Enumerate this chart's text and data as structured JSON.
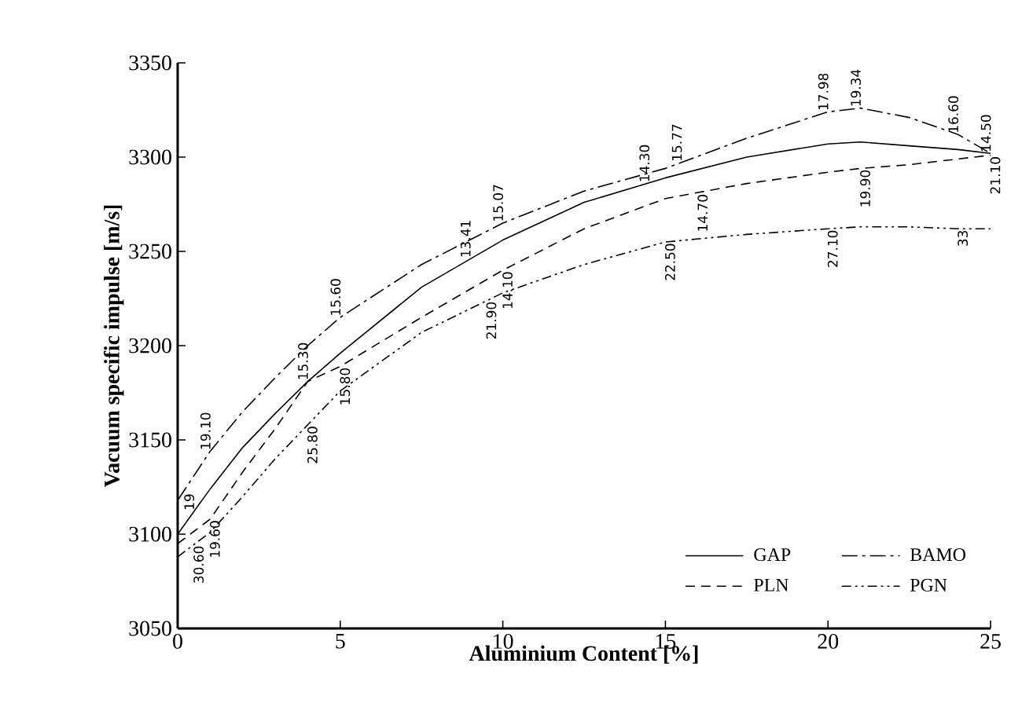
{
  "chart_data": {
    "type": "line",
    "xlabel": "Aluminium Content [%]",
    "ylabel": "Vacuum specific impulse [m/s]",
    "x": [
      0,
      1,
      2,
      3,
      4,
      5,
      7.5,
      10,
      12.5,
      15,
      17.5,
      20,
      21,
      22.5,
      24,
      25
    ],
    "series": [
      {
        "name": "GAP",
        "color": "#000000",
        "line_style": "solid",
        "values": [
          3100,
          3124,
          3146,
          3164,
          3181,
          3196,
          3231,
          3256,
          3276,
          3289,
          3300,
          3307,
          3308,
          3306,
          3304,
          3302
        ]
      },
      {
        "name": "BAMO",
        "color": "#000000",
        "line_style": "dashdot",
        "values": [
          3118,
          3144,
          3165,
          3183,
          3200,
          3215,
          3243,
          3265,
          3282,
          3294,
          3310,
          3324,
          3326,
          3321,
          3312,
          3302
        ]
      },
      {
        "name": "PLN",
        "color": "#000000",
        "line_style": "dashed",
        "values": [
          3095,
          3108,
          3133,
          3156,
          3181,
          3189,
          3215,
          3240,
          3262,
          3278,
          3286,
          3292,
          3294,
          3296,
          3299,
          3301
        ]
      },
      {
        "name": "PGN",
        "color": "#000000",
        "line_style": "dashdotdot",
        "values": [
          3088,
          3101,
          3120,
          3140,
          3158,
          3176,
          3207,
          3228,
          3243,
          3255,
          3259,
          3262,
          3263,
          3263,
          3262,
          3262
        ]
      }
    ],
    "xlim": [
      0,
      25
    ],
    "xticks": [
      0,
      5,
      10,
      15,
      20,
      25
    ],
    "ylim": [
      3050,
      3350
    ],
    "yticks": [
      3050,
      3100,
      3150,
      3200,
      3250,
      3300,
      3350
    ],
    "legend": "bottom right",
    "annotations": [
      {
        "text": "19.10",
        "x": 1,
        "y": 3144
      },
      {
        "text": "19",
        "x": 0.5,
        "y": 3112
      },
      {
        "text": "19.60",
        "x": 1,
        "y": 3108
      },
      {
        "text": "30.60",
        "x": 0.5,
        "y": 3094.5
      },
      {
        "text": "15.30",
        "x": 4,
        "y": 3181
      },
      {
        "text": "15.60",
        "x": 5,
        "y": 3215
      },
      {
        "text": "25.80",
        "x": 4,
        "y": 3158
      },
      {
        "text": "15.80",
        "x": 5,
        "y": 3189
      },
      {
        "text": "13.41",
        "x": 9,
        "y": 3246
      },
      {
        "text": "15.07",
        "x": 10,
        "y": 3265
      },
      {
        "text": "21.90",
        "x": 9.5,
        "y": 3224
      },
      {
        "text": "14.10",
        "x": 10,
        "y": 3240
      },
      {
        "text": "14.30",
        "x": 14.5,
        "y": 3286
      },
      {
        "text": "15.77",
        "x": 15.5,
        "y": 3297
      },
      {
        "text": "22.50",
        "x": 15,
        "y": 3255
      },
      {
        "text": "14.70",
        "x": 16,
        "y": 3281
      },
      {
        "text": "17.98",
        "x": 20,
        "y": 3324
      },
      {
        "text": "19.34",
        "x": 21,
        "y": 3326
      },
      {
        "text": "27.10",
        "x": 20,
        "y": 3262
      },
      {
        "text": "19.90",
        "x": 21,
        "y": 3294
      },
      {
        "text": "16.60",
        "x": 24,
        "y": 3312
      },
      {
        "text": "14.50",
        "x": 25,
        "y": 3302
      },
      {
        "text": "33",
        "x": 24,
        "y": 3262
      },
      {
        "text": "21.10",
        "x": 25,
        "y": 3301
      }
    ]
  }
}
